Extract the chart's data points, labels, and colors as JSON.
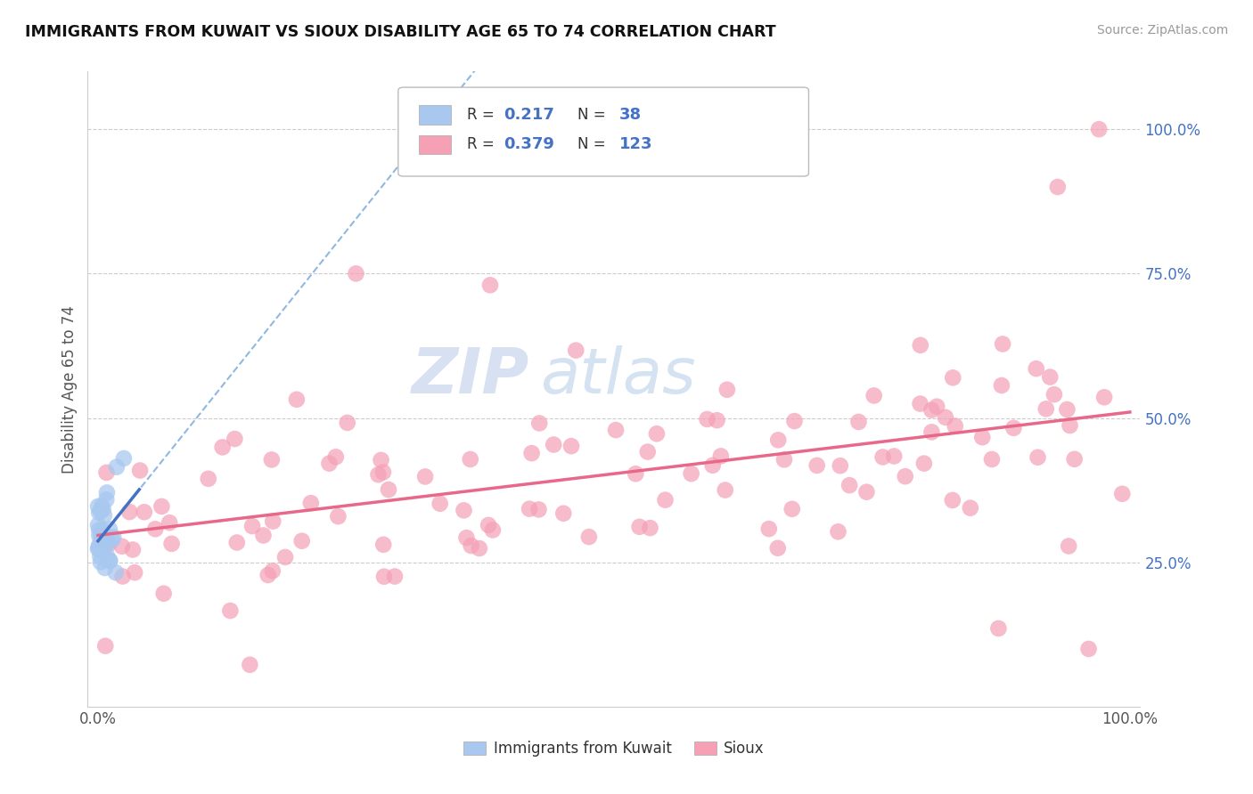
{
  "title": "IMMIGRANTS FROM KUWAIT VS SIOUX DISABILITY AGE 65 TO 74 CORRELATION CHART",
  "source": "Source: ZipAtlas.com",
  "ylabel": "Disability Age 65 to 74",
  "legend_label1": "Immigrants from Kuwait",
  "legend_label2": "Sioux",
  "r1": "0.217",
  "n1": "38",
  "r2": "0.379",
  "n2": "123",
  "color_blue": "#A8C8F0",
  "color_pink": "#F5A0B5",
  "color_line_blue": "#4472C4",
  "color_line_pink": "#E8688A",
  "color_dashed": "#90B8E0",
  "background_color": "#FFFFFF",
  "grid_color": "#CCCCCC",
  "watermark_zip": "ZIP",
  "watermark_atlas": "atlas",
  "tick_color": "#4472C4",
  "label_color": "#555555"
}
